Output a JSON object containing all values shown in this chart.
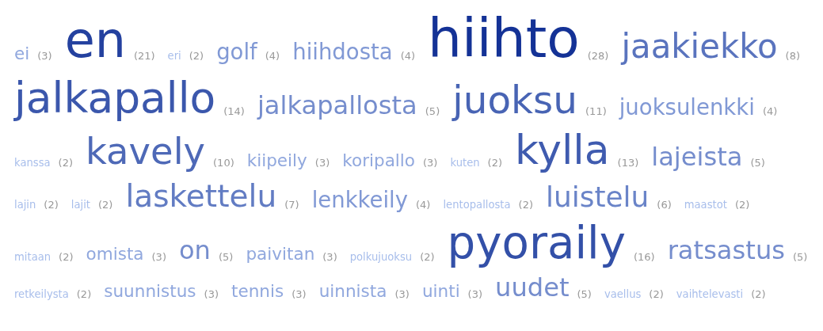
{
  "chart_data": {
    "type": "other",
    "value_labels": [
      "(3)",
      "(21)",
      "(2)",
      "(4)",
      "(4)",
      "(28)",
      "(8)",
      "(14)",
      "(5)",
      "(11)",
      "(4)",
      "(2)",
      "(10)",
      "(3)",
      "(3)",
      "(2)",
      "(13)",
      "(5)",
      "(2)",
      "(2)",
      "(7)",
      "(4)",
      "(2)",
      "(6)",
      "(2)",
      "(2)",
      "(3)",
      "(5)",
      "(3)",
      "(2)",
      "(16)",
      "(5)",
      "(2)",
      "(3)",
      "(3)",
      "(3)",
      "(3)",
      "(5)",
      "(2)",
      "(2)"
    ],
    "categories": [
      "ei",
      "en",
      "eri",
      "golf",
      "hiihdosta",
      "hiihto",
      "jaakiekko",
      "jalkapallo",
      "jalkapallosta",
      "juoksu",
      "juoksulenkki",
      "kanssa",
      "kavely",
      "kiipeily",
      "koripallo",
      "kuten",
      "kylla",
      "lajeista",
      "lajin",
      "lajit",
      "laskettelu",
      "lenkkeily",
      "lentopallosta",
      "luistelu",
      "maastot",
      "mitaan",
      "omista",
      "on",
      "paivitan",
      "polkujuoksu",
      "pyoraily",
      "ratsastus",
      "retkeilysta",
      "suunnistus",
      "tennis",
      "uinnista",
      "uinti",
      "uudet",
      "vaellus",
      "vaihtelevasti"
    ],
    "values": [
      3,
      21,
      2,
      4,
      4,
      28,
      8,
      14,
      5,
      11,
      4,
      2,
      10,
      3,
      3,
      2,
      13,
      5,
      2,
      2,
      7,
      4,
      2,
      6,
      2,
      2,
      3,
      5,
      3,
      2,
      16,
      5,
      2,
      3,
      3,
      3,
      3,
      5,
      2,
      2
    ]
  }
}
